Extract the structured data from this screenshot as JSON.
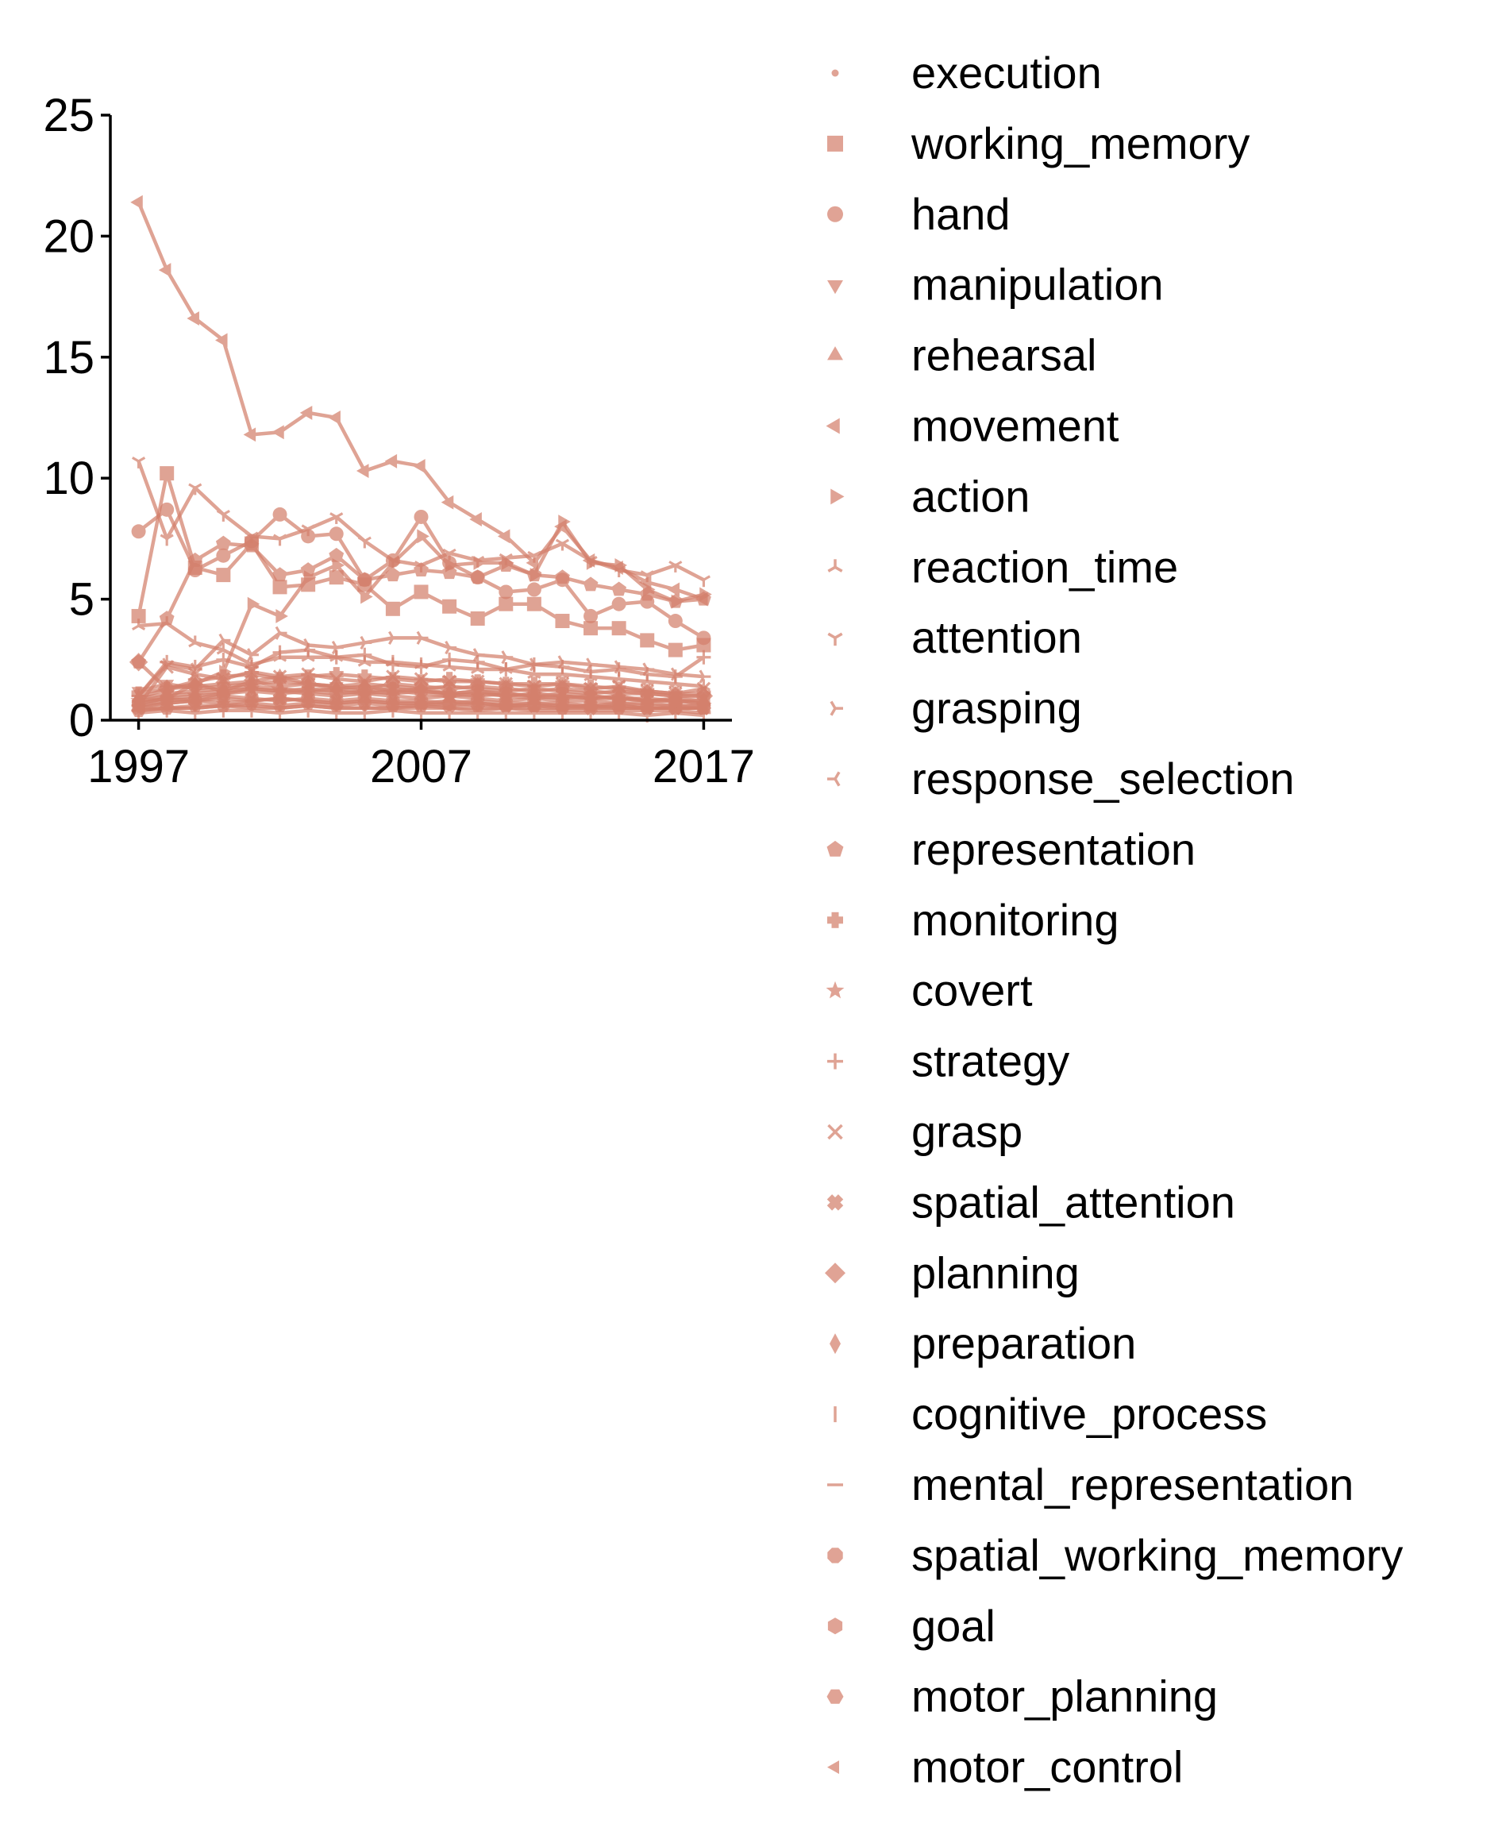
{
  "chart_data": {
    "type": "line",
    "title": "",
    "xlabel": "",
    "ylabel": "",
    "xlim": [
      1996,
      2018
    ],
    "ylim": [
      0,
      25
    ],
    "x_ticks": [
      1997,
      2007,
      2017
    ],
    "y_ticks": [
      0,
      5,
      10,
      15,
      20,
      25
    ],
    "x_tick_labels": [
      "1997",
      "2007",
      "2017"
    ],
    "y_tick_labels": [
      "0",
      "5",
      "10",
      "15",
      "20",
      "25"
    ],
    "grid": false,
    "legend_position": "right",
    "color": "#d4806c",
    "x": [
      1997,
      1998,
      1999,
      2000,
      2001,
      2002,
      2003,
      2004,
      2005,
      2006,
      2007,
      2008,
      2009,
      2010,
      2011,
      2012,
      2013,
      2014,
      2015,
      2016,
      2017
    ],
    "series": [
      {
        "name": "execution",
        "marker": "point",
        "values": [
          0.5,
          0.5,
          0.5,
          0.6,
          0.5,
          0.5,
          0.6,
          0.5,
          0.5,
          0.5,
          0.6,
          0.5,
          0.5,
          0.5,
          0.5,
          0.5,
          0.5,
          0.5,
          0.5,
          0.5,
          0.5
        ]
      },
      {
        "name": "working_memory",
        "marker": "square",
        "values": [
          4.3,
          10.2,
          6.3,
          6.0,
          7.3,
          5.5,
          5.6,
          5.9,
          5.6,
          4.6,
          5.3,
          4.7,
          4.2,
          4.8,
          4.8,
          4.1,
          3.8,
          3.8,
          3.3,
          2.9,
          3.1
        ]
      },
      {
        "name": "hand",
        "marker": "circle",
        "values": [
          7.8,
          8.7,
          6.2,
          6.8,
          7.4,
          8.5,
          7.6,
          7.7,
          5.8,
          6.6,
          8.4,
          6.5,
          5.9,
          5.3,
          5.4,
          5.8,
          4.3,
          4.8,
          4.9,
          4.1,
          3.4
        ]
      },
      {
        "name": "manipulation",
        "marker": "triangle-down",
        "values": [
          1.2,
          1.5,
          1.3,
          1.4,
          1.5,
          1.6,
          1.5,
          1.4,
          1.5,
          1.4,
          1.3,
          1.4,
          1.3,
          1.2,
          1.3,
          1.2,
          1.1,
          1.2,
          1.1,
          1.0,
          1.0
        ]
      },
      {
        "name": "rehearsal",
        "marker": "triangle-up",
        "values": [
          0.9,
          1.3,
          1.5,
          1.2,
          1.6,
          1.8,
          1.5,
          1.3,
          1.4,
          1.2,
          1.3,
          1.1,
          1.2,
          1.0,
          1.1,
          1.0,
          0.9,
          1.0,
          0.8,
          0.9,
          0.8
        ]
      },
      {
        "name": "movement",
        "marker": "triangle-left",
        "values": [
          21.4,
          18.6,
          16.6,
          15.7,
          11.8,
          11.9,
          12.7,
          12.5,
          10.3,
          10.7,
          10.5,
          9.0,
          8.3,
          7.6,
          6.5,
          8.0,
          6.6,
          6.3,
          5.7,
          5.4,
          5.0
        ]
      },
      {
        "name": "action",
        "marker": "triangle-right",
        "values": [
          0.7,
          0.9,
          1.5,
          2.0,
          4.8,
          4.3,
          5.9,
          6.4,
          5.1,
          6.5,
          7.6,
          6.4,
          6.5,
          6.5,
          6.0,
          8.2,
          6.5,
          6.4,
          5.4,
          4.9,
          5.2
        ]
      },
      {
        "name": "reaction_time",
        "marker": "tri-down",
        "values": [
          3.9,
          4.0,
          3.2,
          2.9,
          2.3,
          2.6,
          2.6,
          2.6,
          2.4,
          2.4,
          2.3,
          2.2,
          2.1,
          2.1,
          1.9,
          1.9,
          1.8,
          1.7,
          1.6,
          1.5,
          1.4
        ]
      },
      {
        "name": "attention",
        "marker": "tri-up",
        "values": [
          10.7,
          7.5,
          9.6,
          8.5,
          7.6,
          7.5,
          7.9,
          8.4,
          7.4,
          6.6,
          6.4,
          6.9,
          6.6,
          6.7,
          6.8,
          7.3,
          6.6,
          6.2,
          6.0,
          6.4,
          5.8
        ]
      },
      {
        "name": "grasping",
        "marker": "tri-left",
        "values": [
          1.0,
          2.3,
          2.1,
          3.3,
          2.7,
          3.6,
          3.1,
          3.0,
          3.2,
          3.4,
          3.4,
          3.0,
          2.7,
          2.6,
          2.3,
          2.4,
          2.3,
          2.2,
          2.1,
          1.9,
          1.8
        ]
      },
      {
        "name": "response_selection",
        "marker": "tri-right",
        "values": [
          0.6,
          0.7,
          0.8,
          0.7,
          0.8,
          0.9,
          0.8,
          0.7,
          0.8,
          0.7,
          0.7,
          0.8,
          0.7,
          0.6,
          0.7,
          0.6,
          0.6,
          0.6,
          0.5,
          0.5,
          0.5
        ]
      },
      {
        "name": "representation",
        "marker": "pentagon",
        "values": [
          2.4,
          4.2,
          6.6,
          7.3,
          7.2,
          6.0,
          6.2,
          6.8,
          5.8,
          6.0,
          6.2,
          6.1,
          5.9,
          6.4,
          6.0,
          5.9,
          5.6,
          5.4,
          5.2,
          4.9,
          5.0
        ]
      },
      {
        "name": "monitoring",
        "marker": "plus-filled",
        "values": [
          1.1,
          1.3,
          1.6,
          1.8,
          1.9,
          1.7,
          1.8,
          1.9,
          1.8,
          1.7,
          1.6,
          1.7,
          1.6,
          1.5,
          1.5,
          1.5,
          1.4,
          1.3,
          1.2,
          1.1,
          1.1
        ]
      },
      {
        "name": "covert",
        "marker": "star",
        "values": [
          0.8,
          0.9,
          1.0,
          1.1,
          1.3,
          1.2,
          1.1,
          1.0,
          1.1,
          1.0,
          0.9,
          1.0,
          0.9,
          0.8,
          0.9,
          0.8,
          0.8,
          0.7,
          0.7,
          0.6,
          0.6
        ]
      },
      {
        "name": "strategy",
        "marker": "plus",
        "values": [
          1.0,
          2.4,
          2.2,
          2.5,
          2.2,
          2.8,
          2.9,
          2.6,
          2.7,
          2.3,
          2.2,
          2.5,
          2.4,
          2.1,
          2.3,
          2.2,
          2.0,
          2.1,
          1.9,
          1.8,
          2.6
        ]
      },
      {
        "name": "grasp",
        "marker": "x",
        "values": [
          0.6,
          2.2,
          1.9,
          1.7,
          2.0,
          1.8,
          1.9,
          1.7,
          1.6,
          1.8,
          1.7,
          1.6,
          1.6,
          1.5,
          1.4,
          1.5,
          1.3,
          1.4,
          1.2,
          1.1,
          1.3
        ]
      },
      {
        "name": "spatial_attention",
        "marker": "x-filled",
        "values": [
          0.5,
          0.7,
          0.8,
          0.9,
          0.8,
          0.9,
          0.8,
          0.7,
          0.8,
          0.7,
          0.7,
          0.6,
          0.7,
          0.6,
          0.6,
          0.6,
          0.5,
          0.6,
          0.5,
          0.5,
          0.5
        ]
      },
      {
        "name": "planning",
        "marker": "diamond",
        "values": [
          2.4,
          1.3,
          1.4,
          1.5,
          1.6,
          1.4,
          1.5,
          1.4,
          1.3,
          1.5,
          1.4,
          1.3,
          1.4,
          1.3,
          1.2,
          1.3,
          1.2,
          1.1,
          1.1,
          1.0,
          1.0
        ]
      },
      {
        "name": "preparation",
        "marker": "thin-diamond",
        "values": [
          0.9,
          1.1,
          1.2,
          1.3,
          1.4,
          1.3,
          1.2,
          1.3,
          1.2,
          1.1,
          1.2,
          1.1,
          1.0,
          1.1,
          1.0,
          0.9,
          1.0,
          0.9,
          0.8,
          0.8,
          0.7
        ]
      },
      {
        "name": "cognitive_process",
        "marker": "vline",
        "values": [
          0.3,
          0.4,
          0.3,
          0.4,
          0.4,
          0.3,
          0.4,
          0.3,
          0.3,
          0.4,
          0.3,
          0.3,
          0.3,
          0.3,
          0.3,
          0.3,
          0.3,
          0.3,
          0.2,
          0.3,
          0.2
        ]
      },
      {
        "name": "mental_representation",
        "marker": "hline",
        "values": [
          0.4,
          0.5,
          0.5,
          0.6,
          0.6,
          0.5,
          0.6,
          0.5,
          0.5,
          0.5,
          0.5,
          0.5,
          0.4,
          0.5,
          0.4,
          0.4,
          0.4,
          0.4,
          0.4,
          0.4,
          0.3
        ]
      },
      {
        "name": "spatial_working_memory",
        "marker": "octagon",
        "values": [
          0.7,
          0.9,
          0.8,
          1.0,
          0.9,
          0.8,
          0.9,
          0.8,
          0.9,
          0.8,
          0.8,
          0.7,
          0.8,
          0.7,
          0.7,
          0.7,
          0.6,
          0.7,
          0.6,
          0.6,
          0.6
        ]
      },
      {
        "name": "goal",
        "marker": "hexagon",
        "values": [
          0.6,
          0.8,
          0.9,
          1.1,
          1.2,
          1.1,
          1.2,
          1.1,
          1.2,
          1.3,
          1.2,
          1.1,
          1.2,
          1.1,
          1.0,
          1.1,
          1.0,
          0.9,
          0.9,
          0.8,
          0.8
        ]
      },
      {
        "name": "motor_planning",
        "marker": "hexagon2",
        "values": [
          0.4,
          0.5,
          0.6,
          0.6,
          0.7,
          0.6,
          0.7,
          0.6,
          0.7,
          0.6,
          0.6,
          0.7,
          0.6,
          0.6,
          0.6,
          0.5,
          0.6,
          0.5,
          0.5,
          0.5,
          0.5
        ]
      },
      {
        "name": "motor_control",
        "marker": "caret-left",
        "values": [
          0.8,
          1.0,
          1.1,
          1.2,
          1.3,
          1.2,
          1.3,
          1.2,
          1.1,
          1.2,
          1.1,
          1.0,
          1.1,
          1.0,
          0.9,
          1.0,
          0.9,
          0.9,
          0.8,
          0.8,
          0.7
        ]
      }
    ]
  }
}
